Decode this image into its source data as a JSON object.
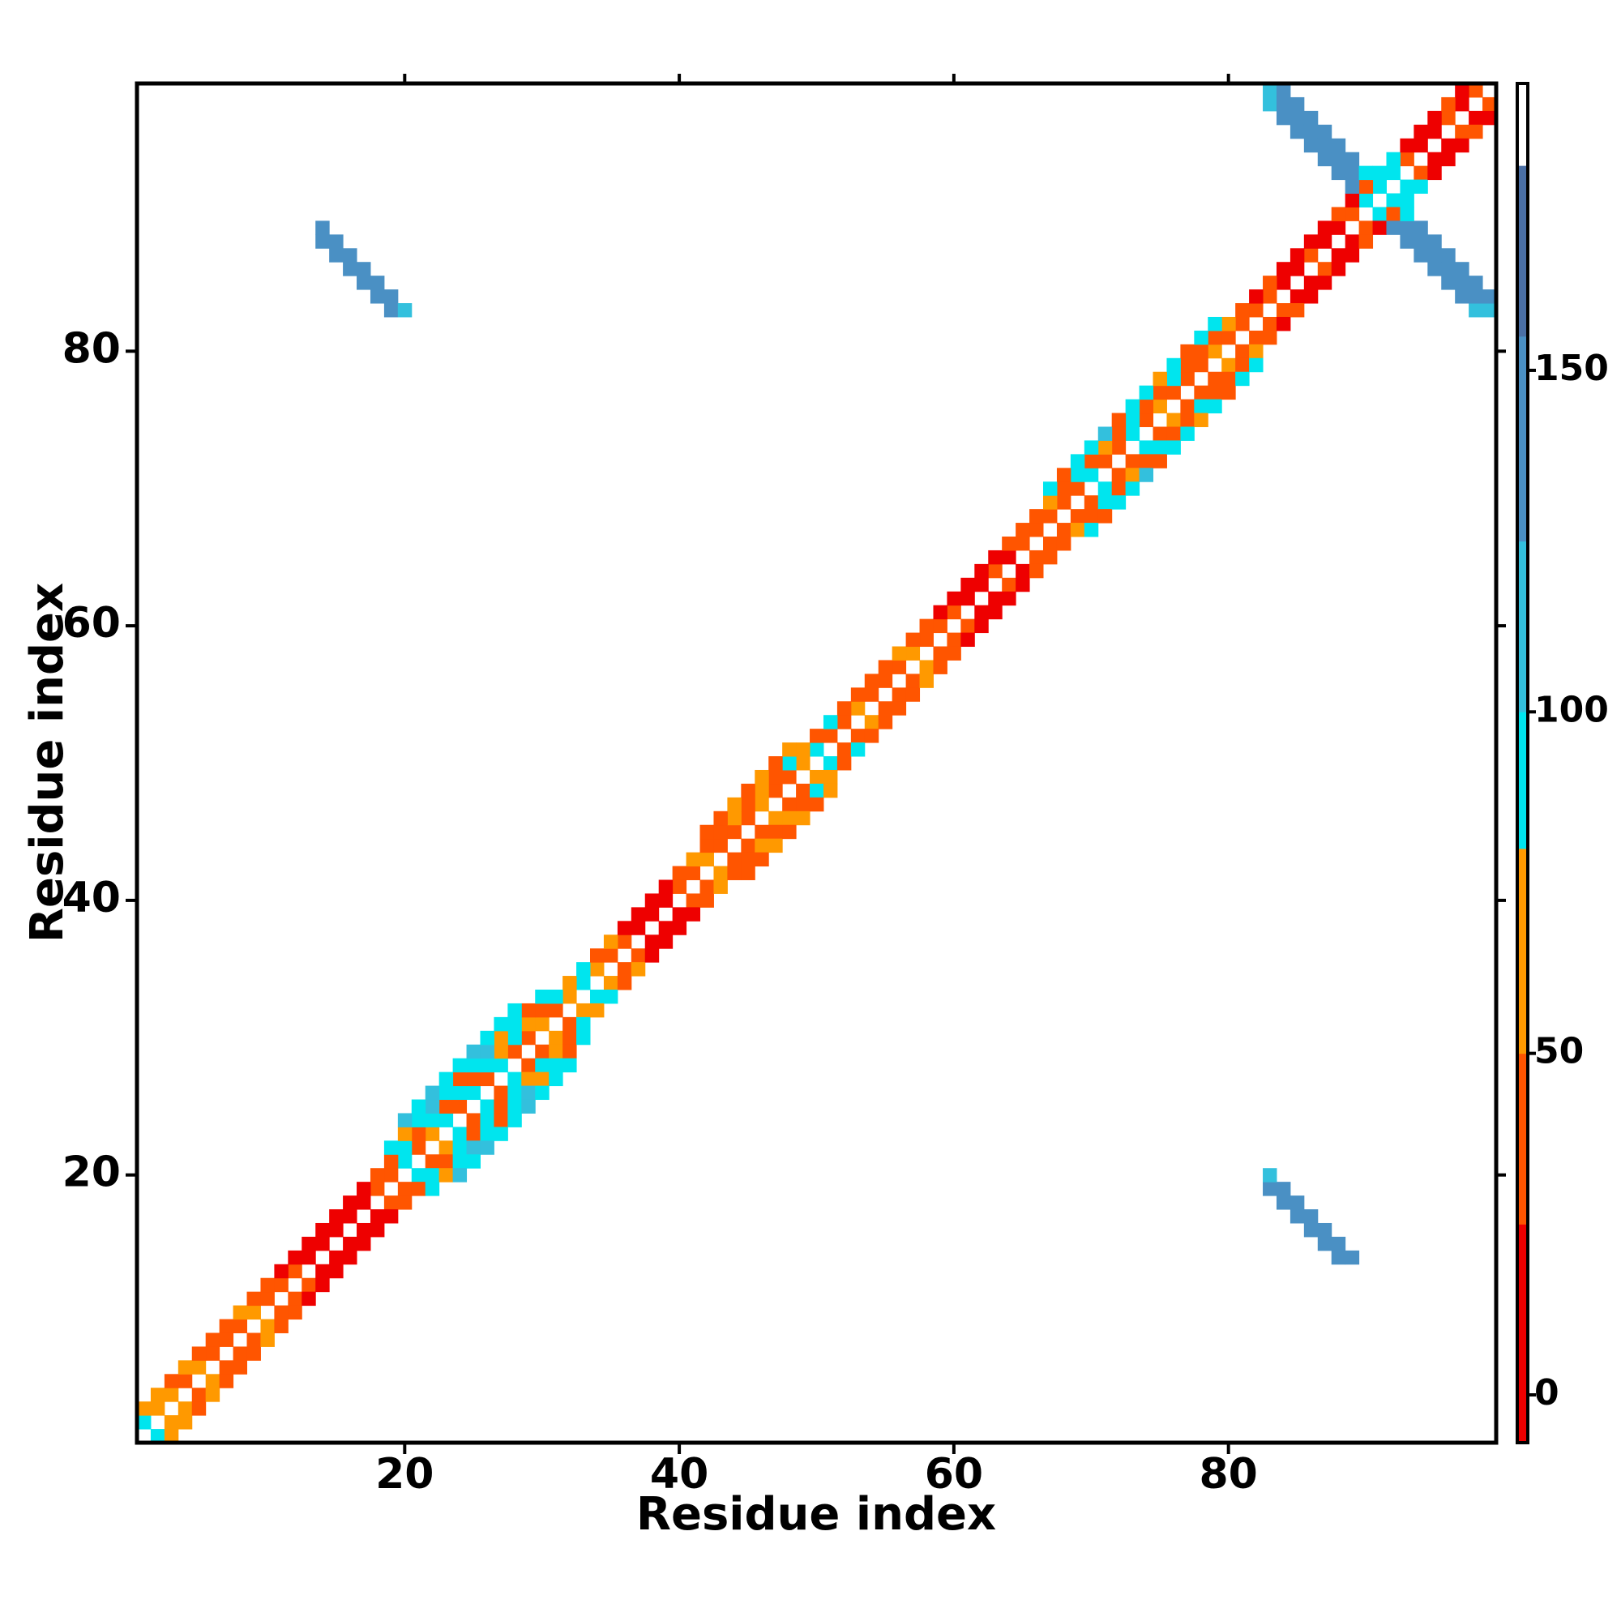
{
  "chart_data": {
    "type": "heatmap",
    "xlabel": "Residue index",
    "ylabel": "Residue index",
    "xlim": [
      0.5,
      99.5
    ],
    "ylim": [
      0.5,
      99.5
    ],
    "xticks": [
      20,
      40,
      60,
      80
    ],
    "yticks": [
      20,
      40,
      60,
      80
    ],
    "symmetric": true,
    "diagonals": [
      {
        "offset": 1,
        "start": 1,
        "values": [
          90,
          60,
          60,
          40,
          60,
          40,
          40,
          40,
          60,
          40,
          40,
          40,
          10,
          10,
          10,
          10,
          10,
          40,
          40,
          90,
          40,
          60,
          90,
          40,
          90,
          40,
          90,
          40,
          40,
          60,
          40,
          60,
          90,
          60,
          40,
          40,
          10,
          10,
          10,
          40,
          40,
          60,
          40,
          40,
          40,
          60,
          40,
          40,
          60,
          90,
          40,
          40,
          60,
          40,
          40,
          40,
          60,
          40,
          40,
          40,
          10,
          10,
          40,
          10,
          40,
          40,
          40,
          40,
          40,
          90,
          40,
          40,
          90,
          40,
          60,
          40,
          40,
          40,
          60,
          40,
          40,
          40,
          40,
          10,
          10,
          40,
          10,
          10,
          40,
          90,
          90,
          90,
          40,
          10,
          10,
          40,
          10,
          40
        ]
      },
      {
        "offset": 2,
        "start": 1,
        "values": [
          60,
          60,
          40,
          60,
          40,
          40,
          40,
          60,
          40,
          40,
          10,
          10,
          10,
          10,
          10,
          10,
          10,
          40,
          40,
          90,
          40,
          90,
          40,
          90,
          40,
          90,
          60,
          90,
          60,
          40,
          90,
          60,
          90,
          40,
          60,
          10,
          10,
          10,
          10,
          40,
          60,
          40,
          40,
          60,
          40,
          60,
          40,
          90,
          60,
          40,
          90,
          40,
          40,
          40,
          40,
          60,
          40,
          40,
          10,
          10,
          10,
          10,
          10,
          40,
          40,
          40,
          60,
          40,
          90,
          40,
          60,
          40,
          90,
          40,
          40,
          90,
          40,
          40,
          40,
          60,
          40,
          10,
          40,
          10,
          10,
          10,
          10,
          40,
          10,
          40,
          90,
          90,
          10,
          10,
          10,
          40,
          10
        ]
      },
      {
        "offset": 3,
        "start": 19,
        "values": [
          90,
          60,
          90,
          110,
          90,
          40,
          90,
          110,
          60,
          90,
          40,
          90
        ]
      },
      {
        "offset": 3,
        "start": 42,
        "values": [
          40,
          40,
          60,
          40,
          60,
          40,
          60
        ]
      },
      {
        "offset": 3,
        "start": 67,
        "values": [
          90,
          40,
          90,
          90,
          110,
          40,
          90,
          90,
          60,
          90,
          40,
          90,
          90
        ]
      },
      {
        "offset": 4,
        "start": 20,
        "values": [
          110,
          90,
          110,
          90,
          90,
          110,
          90,
          90,
          90
        ]
      }
    ],
    "antidiagonals": [
      {
        "sum": 102,
        "start": 14,
        "values": [
          140,
          140,
          140,
          140,
          140,
          140
        ]
      },
      {
        "sum": 103,
        "start": 14,
        "values": [
          140,
          140,
          140,
          140,
          140,
          140,
          110
        ]
      },
      {
        "sum": 181,
        "start": 83,
        "values": [
          110,
          140,
          140,
          140,
          140,
          140,
          140
        ]
      },
      {
        "sum": 182,
        "start": 83,
        "values": [
          110,
          140,
          140,
          140,
          140,
          140,
          140
        ]
      },
      {
        "sum": 183,
        "start": 84,
        "values": [
          140,
          140,
          140,
          140,
          140,
          140,
          90
        ]
      }
    ],
    "colorbar": {
      "zlim": [
        -7,
        192
      ],
      "ticks": [
        0,
        50,
        100,
        150
      ],
      "bins": [
        -7,
        25,
        50,
        80,
        100,
        125,
        155,
        180,
        192
      ],
      "colors": [
        "#ee0000",
        "#ff5500",
        "#ff9900",
        "#00e5ee",
        "#33c0dd",
        "#4a90c4",
        "#4a6fa5",
        "#ffffff"
      ]
    }
  }
}
